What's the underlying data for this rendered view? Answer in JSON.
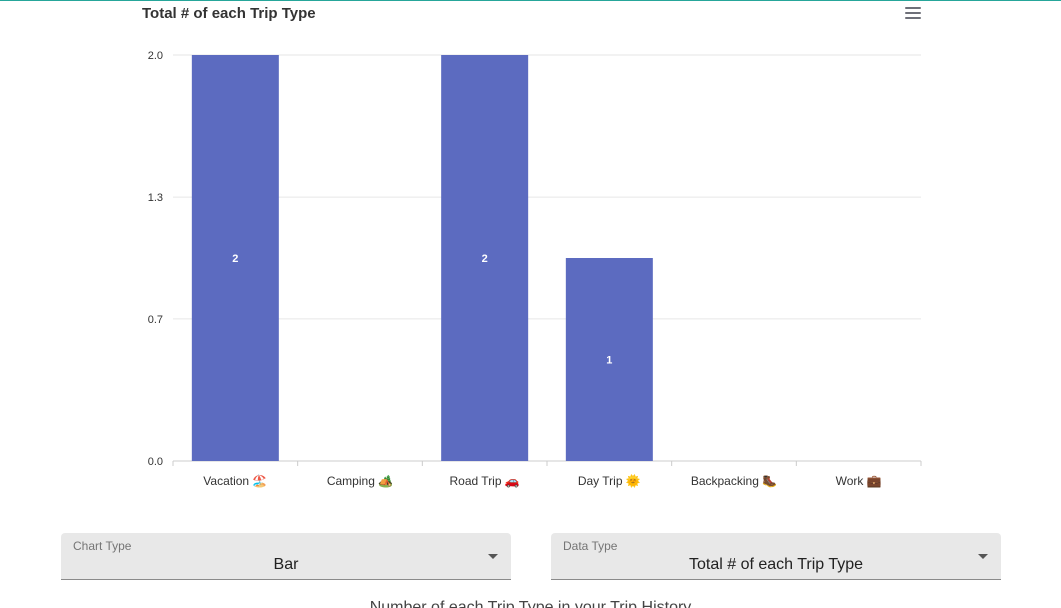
{
  "colors": {
    "accent": "#5c6bc0",
    "top_border": "#26a69a",
    "grid": "#e6e6e6",
    "axis": "#cccccc"
  },
  "chart_data": {
    "type": "bar",
    "title": "Total # of each Trip Type",
    "categories": [
      "Vacation 🏖️",
      "Camping 🏕️",
      "Road Trip 🚗",
      "Day Trip 🌞",
      "Backpacking 🥾",
      "Work 💼"
    ],
    "values": [
      2,
      0,
      2,
      1,
      0,
      0
    ],
    "data_labels": [
      "2",
      "",
      "2",
      "1",
      "",
      ""
    ],
    "yticks": [
      "0.0",
      "0.7",
      "1.3",
      "2.0"
    ],
    "ylim": [
      0,
      2
    ],
    "xlabel": "",
    "ylabel": "",
    "grid": true,
    "color": "#5c6bc0"
  },
  "controls": {
    "chart_type": {
      "label": "Chart Type",
      "value": "Bar"
    },
    "data_type": {
      "label": "Data Type",
      "value": "Total # of each Trip Type"
    }
  },
  "menu_icon": "hamburger-menu-icon",
  "dropdown_icon": "caret-down-icon",
  "footer_text": "Number of each Trip Type in your Trip History"
}
